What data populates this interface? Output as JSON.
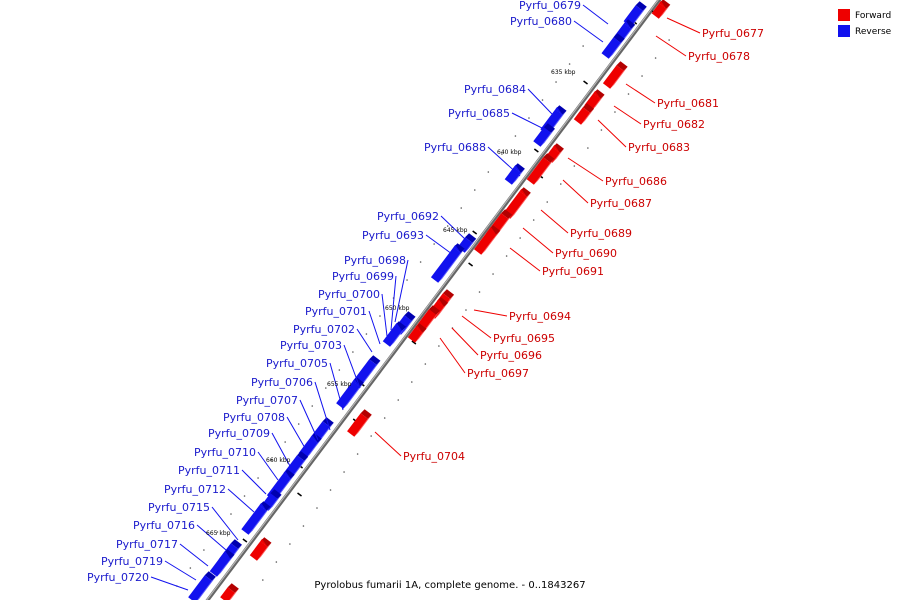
{
  "caption": "Pyrolobus fumarii 1A, complete genome. - 0..1843267",
  "legend": [
    {
      "label": "Forward",
      "color": "#ee0000"
    },
    {
      "label": "Reverse",
      "color": "#1111ee"
    }
  ],
  "colors": {
    "forward": "#ee0000",
    "forward_light": "#ff5a5a",
    "forward_dark": "#b40000",
    "reverse": "#1111ee",
    "reverse_light": "#5a5aff",
    "reverse_dark": "#0000b0",
    "axis": "#777777"
  },
  "scale_labels": [
    "635 kbp",
    "640 kbp",
    "645 kbp",
    "650 kbp",
    "655 kbp",
    "660 kbp",
    "665 kbp"
  ],
  "forward_genes": [
    "Pyrfu_0677",
    "Pyrfu_0678",
    "Pyrfu_0681",
    "Pyrfu_0682",
    "Pyrfu_0683",
    "Pyrfu_0686",
    "Pyrfu_0687",
    "Pyrfu_0689",
    "Pyrfu_0690",
    "Pyrfu_0691",
    "Pyrfu_0694",
    "Pyrfu_0695",
    "Pyrfu_0696",
    "Pyrfu_0697",
    "Pyrfu_0704"
  ],
  "reverse_genes": [
    "Pyrfu_0679",
    "Pyrfu_0680",
    "Pyrfu_0684",
    "Pyrfu_0685",
    "Pyrfu_0688",
    "Pyrfu_0692",
    "Pyrfu_0693",
    "Pyrfu_0698",
    "Pyrfu_0699",
    "Pyrfu_0700",
    "Pyrfu_0701",
    "Pyrfu_0702",
    "Pyrfu_0703",
    "Pyrfu_0705",
    "Pyrfu_0706",
    "Pyrfu_0707",
    "Pyrfu_0708",
    "Pyrfu_0709",
    "Pyrfu_0710",
    "Pyrfu_0711",
    "Pyrfu_0712",
    "Pyrfu_0715",
    "Pyrfu_0716",
    "Pyrfu_0717",
    "Pyrfu_0719",
    "Pyrfu_0720"
  ]
}
